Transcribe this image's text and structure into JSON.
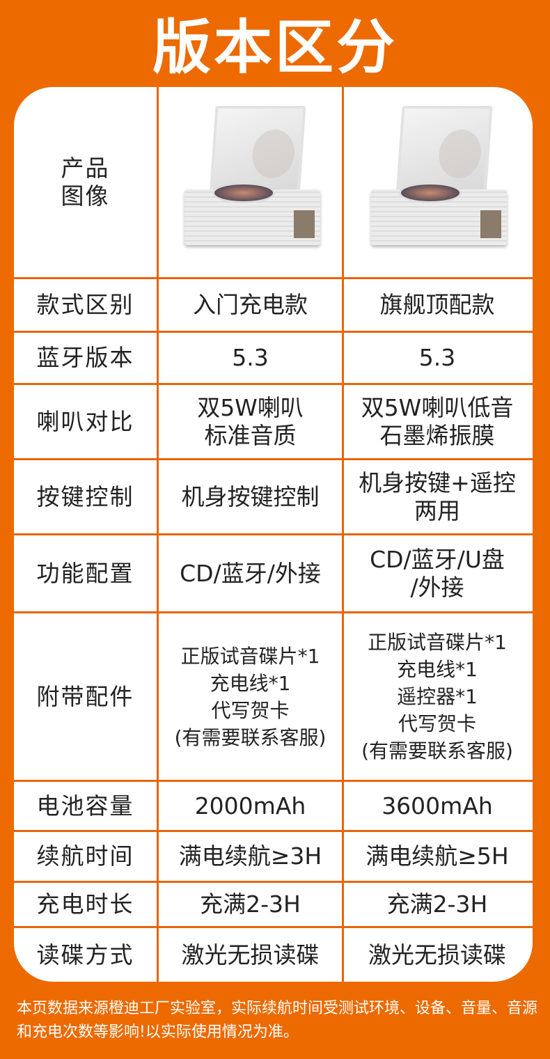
{
  "title": "版本区分",
  "header_row": {
    "label_lines": [
      "产品",
      "图像"
    ],
    "col1_image": "turntable-cd-player-entry",
    "col2_image": "turntable-cd-player-flagship"
  },
  "rows": [
    {
      "label": "款式区别",
      "col1": [
        "入门充电款"
      ],
      "col2": [
        "旗舰顶配款"
      ]
    },
    {
      "label": "蓝牙版本",
      "col1": [
        "5.3"
      ],
      "col2": [
        "5.3"
      ]
    },
    {
      "label": "喇叭对比",
      "col1": [
        "双5W喇叭",
        "标准音质"
      ],
      "col2": [
        "双5W喇叭低音",
        "石墨烯振膜"
      ]
    },
    {
      "label": "按键控制",
      "col1": [
        "机身按键控制"
      ],
      "col2": [
        "机身按键+遥控",
        "两用"
      ]
    },
    {
      "label": "功能配置",
      "col1": [
        "CD/蓝牙/外接"
      ],
      "col2": [
        "CD/蓝牙/U盘",
        "/外接"
      ]
    },
    {
      "label": "附带配件",
      "col1": [
        "正版试音碟片*1",
        "充电线*1",
        "代写贺卡",
        "(有需要联系客服)"
      ],
      "col2": [
        "正版试音碟片*1",
        "充电线*1",
        "遥控器*1",
        "代写贺卡",
        "(有需要联系客服)"
      ]
    },
    {
      "label": "电池容量",
      "col1": [
        "2000mAh"
      ],
      "col2": [
        "3600mAh"
      ]
    },
    {
      "label": "续航时间",
      "col1": [
        "满电续航≥3H"
      ],
      "col2": [
        "满电续航≥5H"
      ]
    },
    {
      "label": "充电时长",
      "col1": [
        "充满2-3H"
      ],
      "col2": [
        "充满2-3H"
      ]
    },
    {
      "label": "读碟方式",
      "col1": [
        "激光无损读碟"
      ],
      "col2": [
        "激光无损读碟"
      ]
    }
  ],
  "note": "本页数据来源橙迪工厂实验室，实际续航时间受测试环境、设备、音量、音源和充电次数等影响!以实际使用情况为准。",
  "colors": {
    "background": "#ec6a00",
    "grid": "#e8650a",
    "card": "#ffffff"
  }
}
